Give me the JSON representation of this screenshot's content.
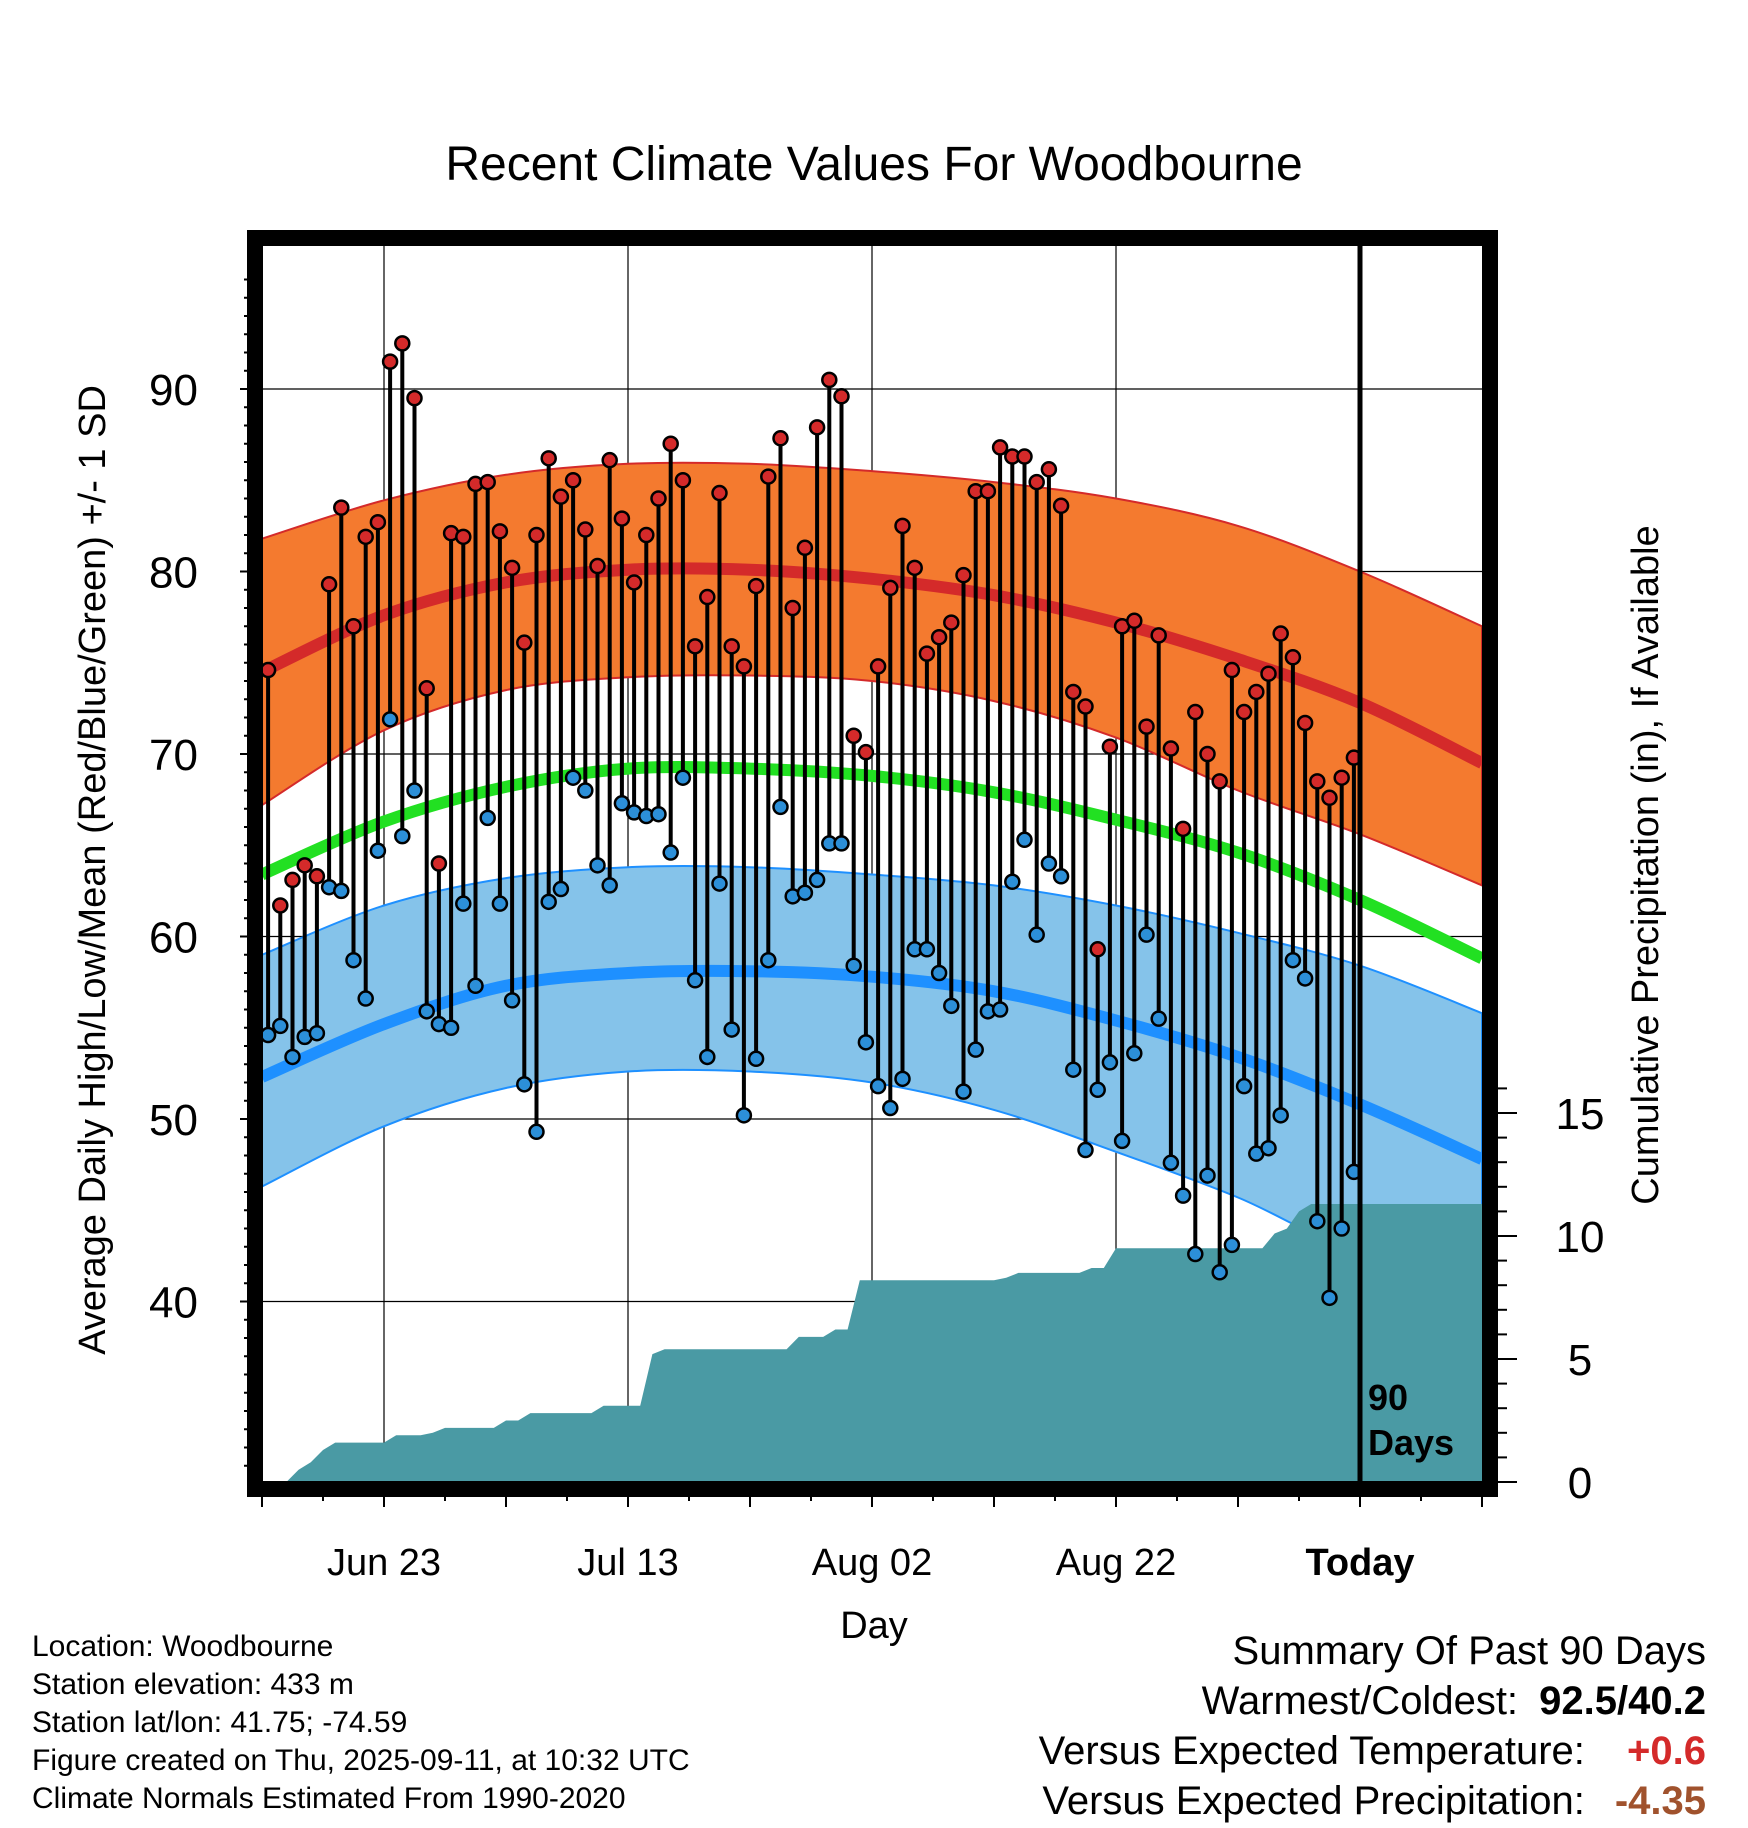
{
  "chart_data": {
    "type": "line",
    "title": "Recent Climate Values For Woodbourne",
    "xlabel": "Day",
    "ylabel": "Average Daily High/Low/Mean (Red/Blue/Green) +/- 1 SD",
    "y2label": "Cumulative Precipitation (in), If Available",
    "ylim": [
      29,
      97
    ],
    "y2lim": [
      0,
      34
    ],
    "yticks": [
      40,
      50,
      60,
      70,
      80,
      90
    ],
    "y2ticks": [
      0,
      5,
      10,
      15
    ],
    "xticks": [
      {
        "day": 10,
        "label": "Jun 23"
      },
      {
        "day": 30,
        "label": "Jul 13"
      },
      {
        "day": 50,
        "label": "Aug 02"
      },
      {
        "day": 70,
        "label": "Aug 22"
      },
      {
        "day": 90,
        "label": "Today"
      }
    ],
    "xlim": [
      0,
      100
    ],
    "today_marker": {
      "day": 90,
      "label_line1": "90",
      "label_line2": "Days"
    },
    "normals": {
      "days": [
        0,
        10,
        20,
        30,
        40,
        50,
        60,
        70,
        80,
        90,
        100
      ],
      "high_mean": [
        74.5,
        77.6,
        79.4,
        80.1,
        80.1,
        79.6,
        78.7,
        77.2,
        75.2,
        72.8,
        69.5
      ],
      "high_upper": [
        81.8,
        83.9,
        85.3,
        85.9,
        85.9,
        85.5,
        84.9,
        84.0,
        82.5,
        80.0,
        77.0
      ],
      "high_lower": [
        67.2,
        71.3,
        73.5,
        74.2,
        74.3,
        74.0,
        72.9,
        70.9,
        68.0,
        65.6,
        62.8
      ],
      "mean": [
        63.4,
        66.3,
        68.2,
        69.2,
        69.2,
        68.8,
        67.9,
        66.4,
        64.6,
        62.0,
        58.8
      ],
      "low_mean": [
        52.3,
        55.2,
        57.3,
        58.0,
        58.1,
        57.8,
        57.0,
        55.4,
        53.4,
        50.8,
        47.8
      ],
      "low_upper": [
        59.0,
        61.7,
        63.2,
        63.8,
        63.8,
        63.4,
        62.8,
        61.7,
        60.2,
        58.4,
        55.8
      ],
      "low_lower": [
        46.3,
        49.6,
        51.7,
        52.6,
        52.6,
        52.0,
        50.5,
        48.2,
        45.7,
        42.7,
        42.2
      ]
    },
    "series": [
      {
        "name": "High",
        "values": [
          74.6,
          61.7,
          63.1,
          63.9,
          63.3,
          79.3,
          83.5,
          77.0,
          81.9,
          82.7,
          91.5,
          92.5,
          89.5,
          73.6,
          64.0,
          82.1,
          81.9,
          84.8,
          84.9,
          82.2,
          80.2,
          76.1,
          82.0,
          86.2,
          84.1,
          85.0,
          82.3,
          80.3,
          86.1,
          82.9,
          79.4,
          82.0,
          84.0,
          87.0,
          85.0,
          75.9,
          78.6,
          84.3,
          75.9,
          74.8,
          79.2,
          85.2,
          87.3,
          78.0,
          81.3,
          87.9,
          90.5,
          89.6,
          71.0,
          70.1,
          74.8,
          79.1,
          82.5,
          80.2,
          75.5,
          76.4,
          77.2,
          79.8,
          84.4,
          84.4,
          86.8,
          86.3,
          86.3,
          84.9,
          85.6,
          83.6,
          73.4,
          72.6,
          59.3,
          70.4,
          77.0,
          77.3,
          71.5,
          76.5,
          70.3,
          65.9,
          72.3,
          70.0,
          68.5,
          74.6,
          72.3,
          73.4,
          74.4,
          76.6,
          75.3,
          71.7,
          68.5,
          67.6,
          68.7,
          69.8
        ]
      },
      {
        "name": "Low",
        "values": [
          54.6,
          55.1,
          53.4,
          54.5,
          54.7,
          62.7,
          62.5,
          58.7,
          56.6,
          64.7,
          71.9,
          65.5,
          68.0,
          55.9,
          55.2,
          55.0,
          61.8,
          57.3,
          66.5,
          61.8,
          56.5,
          51.9,
          49.3,
          61.9,
          62.6,
          68.7,
          68.0,
          63.9,
          62.8,
          67.3,
          66.8,
          66.6,
          66.7,
          64.6,
          68.7,
          57.6,
          53.4,
          62.9,
          54.9,
          50.2,
          53.3,
          58.7,
          67.1,
          62.2,
          62.4,
          63.1,
          65.1,
          65.1,
          58.4,
          54.2,
          51.8,
          50.6,
          52.2,
          59.3,
          59.3,
          58.0,
          56.2,
          51.5,
          53.8,
          55.9,
          56.0,
          63.0,
          65.3,
          60.1,
          64.0,
          63.3,
          52.7,
          48.3,
          51.6,
          53.1,
          48.8,
          53.6,
          60.1,
          55.5,
          47.6,
          45.8,
          42.6,
          46.9,
          41.6,
          43.1,
          51.8,
          48.1,
          48.4,
          50.2,
          58.7,
          57.7,
          44.4,
          40.2,
          44.0,
          47.1
        ]
      },
      {
        "name": "Cumulative Precipitation",
        "values": [
          0.0,
          0.0,
          0.0,
          0.5,
          0.8,
          1.3,
          1.6,
          1.6,
          1.6,
          1.6,
          1.6,
          1.9,
          1.9,
          1.9,
          2.0,
          2.2,
          2.2,
          2.2,
          2.2,
          2.2,
          2.5,
          2.5,
          2.8,
          2.8,
          2.8,
          2.8,
          2.8,
          2.8,
          3.1,
          3.1,
          3.1,
          3.1,
          5.2,
          5.4,
          5.4,
          5.4,
          5.4,
          5.4,
          5.4,
          5.4,
          5.4,
          5.4,
          5.4,
          5.4,
          5.9,
          5.9,
          5.9,
          6.2,
          6.2,
          8.2,
          8.2,
          8.2,
          8.2,
          8.2,
          8.2,
          8.2,
          8.2,
          8.2,
          8.2,
          8.2,
          8.2,
          8.3,
          8.5,
          8.5,
          8.5,
          8.5,
          8.5,
          8.5,
          8.7,
          8.7,
          9.5,
          9.5,
          9.5,
          9.5,
          9.5,
          9.5,
          9.5,
          9.5,
          9.5,
          9.5,
          9.5,
          9.5,
          9.5,
          10.1,
          10.3,
          11.0,
          11.3,
          11.3,
          11.3,
          11.3,
          11.3,
          11.3,
          11.3,
          11.3,
          11.3,
          11.3,
          11.3,
          11.3,
          11.3,
          11.3,
          11.3
        ]
      }
    ],
    "colors": {
      "high_band": "#f47a2f",
      "high_line": "#d42a2a",
      "low_band": "#85c3ea",
      "low_line": "#1e90ff",
      "mean_line": "#22e022",
      "precip_fill": "#4a9aa4",
      "high_dot": "#d42a2a",
      "low_dot": "#2c8fd8"
    },
    "grid": true
  },
  "info": {
    "location": "Location: Woodbourne",
    "elevation": "Station elevation: 433 m",
    "latlon": "Station lat/lon: 41.75; -74.59",
    "created": "Figure created on Thu, 2025-09-11, at 10:32 UTC",
    "normals": "Climate Normals Estimated From 1990-2020"
  },
  "summary": {
    "title": "Summary Of Past 90 Days",
    "warmest_label": "Warmest/Coldest:",
    "warmest_value": "92.5/40.2",
    "temp_label": "Versus Expected Temperature:",
    "temp_value": "+0.6",
    "temp_color": "#d42a2a",
    "precip_label": "Versus Expected Precipitation:",
    "precip_value": "-4.35",
    "precip_color": "#a0522d"
  }
}
